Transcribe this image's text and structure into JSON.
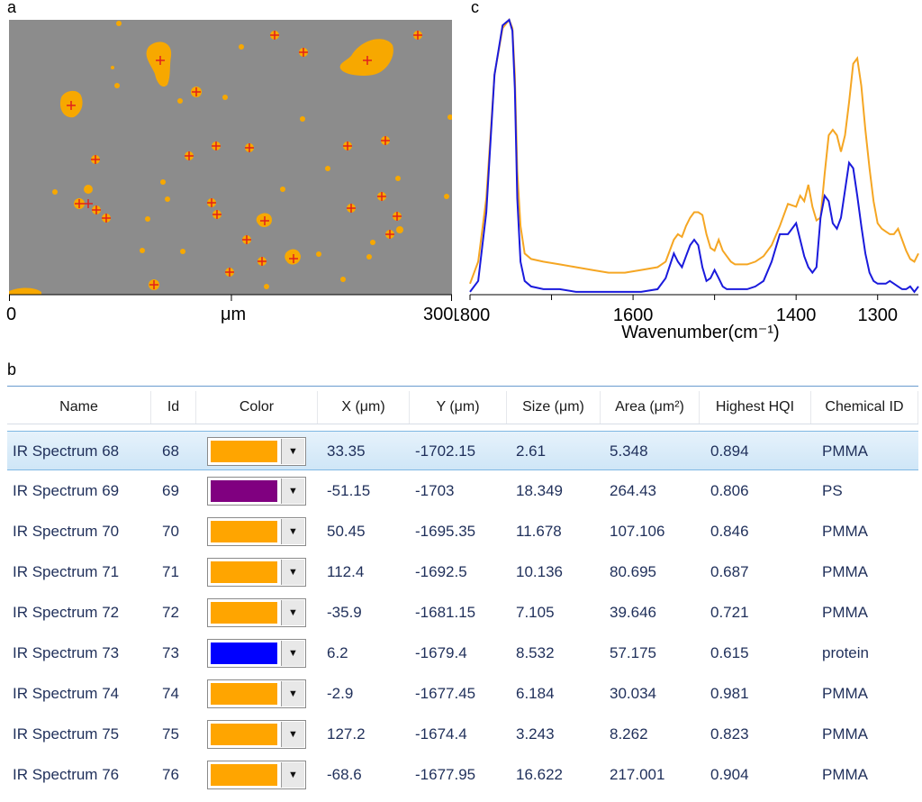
{
  "panels": {
    "a": {
      "letter": "a",
      "x_min": "0",
      "x_unit": "μm",
      "x_max": "300"
    },
    "b": {
      "letter": "b"
    },
    "c": {
      "letter": "c"
    }
  },
  "chart_data": {
    "type": "line",
    "xlabel": "Wavenumber(cm⁻¹)",
    "x_ticks": [
      1800,
      1600,
      1400,
      1300
    ],
    "xlim": [
      1800,
      1250
    ],
    "colors": {
      "sample": "#f5a623",
      "reference": "#1a1adc"
    },
    "series": [
      {
        "key": "sample",
        "color": "#f5a623",
        "x": [
          1800,
          1790,
          1780,
          1770,
          1760,
          1752,
          1748,
          1745,
          1742,
          1738,
          1733,
          1725,
          1710,
          1690,
          1670,
          1650,
          1630,
          1610,
          1590,
          1570,
          1560,
          1550,
          1545,
          1540,
          1535,
          1530,
          1525,
          1520,
          1515,
          1510,
          1505,
          1500,
          1495,
          1490,
          1485,
          1480,
          1475,
          1470,
          1460,
          1450,
          1440,
          1430,
          1420,
          1410,
          1400,
          1395,
          1390,
          1385,
          1380,
          1375,
          1370,
          1365,
          1360,
          1355,
          1350,
          1345,
          1340,
          1335,
          1330,
          1325,
          1320,
          1315,
          1310,
          1305,
          1300,
          1295,
          1290,
          1285,
          1280,
          1275,
          1270,
          1265,
          1260,
          1255,
          1250
        ],
        "y": [
          0.04,
          0.12,
          0.35,
          0.8,
          0.97,
          1.0,
          0.97,
          0.8,
          0.45,
          0.25,
          0.15,
          0.13,
          0.12,
          0.11,
          0.1,
          0.09,
          0.08,
          0.08,
          0.09,
          0.1,
          0.12,
          0.2,
          0.22,
          0.21,
          0.25,
          0.28,
          0.3,
          0.3,
          0.29,
          0.22,
          0.17,
          0.16,
          0.2,
          0.16,
          0.14,
          0.12,
          0.11,
          0.11,
          0.11,
          0.12,
          0.14,
          0.18,
          0.25,
          0.33,
          0.32,
          0.36,
          0.34,
          0.4,
          0.32,
          0.27,
          0.28,
          0.44,
          0.58,
          0.6,
          0.58,
          0.52,
          0.58,
          0.7,
          0.84,
          0.86,
          0.76,
          0.6,
          0.46,
          0.34,
          0.26,
          0.24,
          0.23,
          0.22,
          0.22,
          0.24,
          0.2,
          0.16,
          0.13,
          0.12,
          0.15
        ]
      },
      {
        "key": "reference",
        "color": "#1a1adc",
        "x": [
          1800,
          1790,
          1780,
          1770,
          1760,
          1752,
          1748,
          1745,
          1742,
          1738,
          1733,
          1725,
          1710,
          1690,
          1670,
          1650,
          1630,
          1610,
          1590,
          1570,
          1560,
          1550,
          1545,
          1540,
          1535,
          1530,
          1525,
          1520,
          1515,
          1510,
          1505,
          1500,
          1495,
          1490,
          1485,
          1480,
          1475,
          1470,
          1460,
          1450,
          1440,
          1430,
          1420,
          1410,
          1400,
          1395,
          1390,
          1385,
          1380,
          1375,
          1370,
          1365,
          1360,
          1355,
          1350,
          1345,
          1340,
          1335,
          1330,
          1325,
          1320,
          1315,
          1310,
          1305,
          1300,
          1295,
          1290,
          1285,
          1280,
          1275,
          1270,
          1265,
          1260,
          1255,
          1250
        ],
        "y": [
          0.01,
          0.05,
          0.3,
          0.8,
          0.98,
          1.0,
          0.96,
          0.75,
          0.35,
          0.12,
          0.05,
          0.03,
          0.02,
          0.02,
          0.01,
          0.01,
          0.01,
          0.01,
          0.01,
          0.02,
          0.06,
          0.15,
          0.12,
          0.1,
          0.14,
          0.18,
          0.2,
          0.18,
          0.1,
          0.05,
          0.06,
          0.09,
          0.06,
          0.03,
          0.02,
          0.02,
          0.02,
          0.02,
          0.02,
          0.03,
          0.05,
          0.12,
          0.22,
          0.22,
          0.26,
          0.2,
          0.14,
          0.1,
          0.08,
          0.1,
          0.28,
          0.36,
          0.34,
          0.26,
          0.24,
          0.28,
          0.38,
          0.48,
          0.46,
          0.36,
          0.25,
          0.15,
          0.08,
          0.05,
          0.04,
          0.04,
          0.04,
          0.05,
          0.04,
          0.03,
          0.02,
          0.02,
          0.03,
          0.01,
          0.03
        ]
      }
    ]
  },
  "micro": {
    "colors": {
      "bg": "#8c8c8c",
      "particle": "#f7a800",
      "particle_core": "#ffd54a",
      "marker": "#e0201c"
    }
  },
  "table": {
    "columns": [
      "Name",
      "Id",
      "Color",
      "X (μm)",
      "Y (μm)",
      "Size (μm)",
      "Area (μm²)",
      "Highest HQI",
      "Chemical ID"
    ],
    "rows": [
      {
        "name": "IR Spectrum 68",
        "id": "68",
        "color": "#ffa500",
        "x": "33.35",
        "y": "-1702.15",
        "size": "2.61",
        "area": "5.348",
        "hqi": "0.894",
        "chem": "PMMA",
        "selected": true
      },
      {
        "name": "IR Spectrum 69",
        "id": "69",
        "color": "#800080",
        "x": "-51.15",
        "y": "-1703",
        "size": "18.349",
        "area": "264.43",
        "hqi": "0.806",
        "chem": "PS"
      },
      {
        "name": "IR Spectrum 70",
        "id": "70",
        "color": "#ffa500",
        "x": "50.45",
        "y": "-1695.35",
        "size": "11.678",
        "area": "107.106",
        "hqi": "0.846",
        "chem": "PMMA"
      },
      {
        "name": "IR Spectrum 71",
        "id": "71",
        "color": "#ffa500",
        "x": "112.4",
        "y": "-1692.5",
        "size": "10.136",
        "area": "80.695",
        "hqi": "0.687",
        "chem": "PMMA"
      },
      {
        "name": "IR Spectrum 72",
        "id": "72",
        "color": "#ffa500",
        "x": "-35.9",
        "y": "-1681.15",
        "size": "7.105",
        "area": "39.646",
        "hqi": "0.721",
        "chem": "PMMA"
      },
      {
        "name": "IR Spectrum 73",
        "id": "73",
        "color": "#0000ff",
        "x": "6.2",
        "y": "-1679.4",
        "size": "8.532",
        "area": "57.175",
        "hqi": "0.615",
        "chem": "protein"
      },
      {
        "name": "IR Spectrum 74",
        "id": "74",
        "color": "#ffa500",
        "x": "-2.9",
        "y": "-1677.45",
        "size": "6.184",
        "area": "30.034",
        "hqi": "0.981",
        "chem": "PMMA"
      },
      {
        "name": "IR Spectrum 75",
        "id": "75",
        "color": "#ffa500",
        "x": "127.2",
        "y": "-1674.4",
        "size": "3.243",
        "area": "8.262",
        "hqi": "0.823",
        "chem": "PMMA"
      },
      {
        "name": "IR Spectrum 76",
        "id": "76",
        "color": "#ffa500",
        "x": "-68.6",
        "y": "-1677.95",
        "size": "16.622",
        "area": "217.001",
        "hqi": "0.904",
        "chem": "PMMA"
      }
    ]
  }
}
